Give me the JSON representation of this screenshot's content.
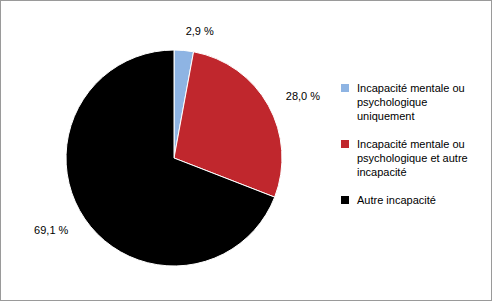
{
  "chart_data": {
    "type": "pie",
    "categories": [
      "Incapacité mentale ou psychologique uniquement",
      "Incapacité mentale ou psychologique et autre incapacité",
      "Autre incapacité"
    ],
    "values": [
      2.9,
      28.0,
      69.1
    ],
    "value_labels": [
      "2,9 %",
      "28,0 %",
      "69,1 %"
    ],
    "colors": [
      "#8eb4e3",
      "#c0272d",
      "#000000"
    ],
    "data_labels": true,
    "legend": "right"
  }
}
